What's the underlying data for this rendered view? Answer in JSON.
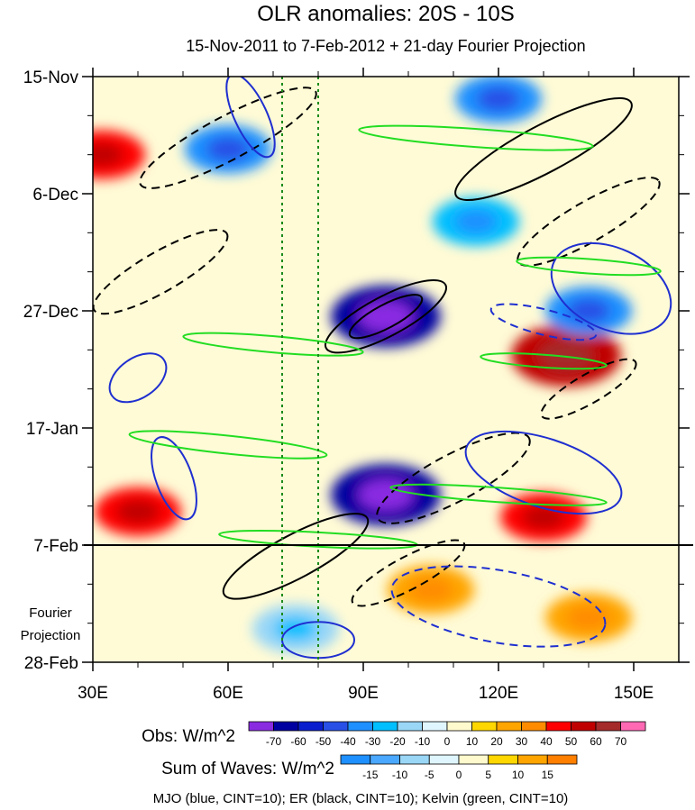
{
  "chart_data": {
    "type": "heatmap",
    "title": "OLR anomalies: 20S - 10S",
    "subtitle": "15-Nov-2011 to 7-Feb-2012 + 21-day Fourier Projection",
    "x_ticks": [
      {
        "value": 30,
        "label": "30E"
      },
      {
        "value": 60,
        "label": "60E"
      },
      {
        "value": 90,
        "label": "90E"
      },
      {
        "value": 120,
        "label": "120E"
      },
      {
        "value": 150,
        "label": "150E"
      }
    ],
    "xlim": [
      30,
      160
    ],
    "y_ticks": [
      {
        "value": "2011-11-15",
        "label": "15-Nov"
      },
      {
        "value": "2011-12-06",
        "label": "6-Dec"
      },
      {
        "value": "2011-12-27",
        "label": "27-Dec"
      },
      {
        "value": "2012-01-17",
        "label": "17-Jan"
      },
      {
        "value": "2012-02-07",
        "label": "7-Feb"
      },
      {
        "value": "2012-02-28",
        "label": "28-Feb"
      }
    ],
    "ylim": [
      "2011-11-15",
      "2012-02-28"
    ],
    "forecast_start": "2012-02-07",
    "forecast_label": "Fourier Projection",
    "reference_lines_x": [
      72,
      80
    ],
    "obs_colorbar": {
      "label": "Obs: W/m^2",
      "levels": [
        "-70",
        "-60",
        "-50",
        "-40",
        "-30",
        "-20",
        "-10",
        "0",
        "10",
        "20",
        "30",
        "40",
        "50",
        "60",
        "70"
      ],
      "colors": [
        "#8a2be2",
        "#0000a0",
        "#0a1ecd",
        "#2850e6",
        "#1e90ff",
        "#00bfff",
        "#9ad7f7",
        "#e0f6ff",
        "#fffacd",
        "#ffd700",
        "#ffa500",
        "#ff8c00",
        "#ff0000",
        "#c00000",
        "#a52a2a",
        "#ff69b4"
      ]
    },
    "waves_colorbar": {
      "label": "Sum of Waves: W/m^2",
      "levels": [
        "-15",
        "-10",
        "-5",
        "0",
        "5",
        "10",
        "15"
      ],
      "colors": [
        "#1e90ff",
        "#4aa8ff",
        "#9ad7f7",
        "#e0f6ff",
        "#fffacd",
        "#ffd700",
        "#ffa500",
        "#ff7f00"
      ]
    },
    "contour_legend": "MJO (blue, CINT=10); ER (black, CINT=10); Kelvin (green, CINT=10)",
    "contour_colors": {
      "MJO": "#1f2fd0",
      "ER": "#000000",
      "Kelvin": "#22dd22"
    },
    "contour_interval": 10,
    "obs_field_sketch": [
      {
        "lon": 95,
        "date": "2012-01-29",
        "value": -65
      },
      {
        "lon": 95,
        "date": "2011-12-28",
        "value": -65
      },
      {
        "lon": 135,
        "date": "2012-01-04",
        "value": 55
      },
      {
        "lon": 130,
        "date": "2012-02-02",
        "value": 45
      },
      {
        "lon": 40,
        "date": "2012-02-01",
        "value": 45
      },
      {
        "lon": 32,
        "date": "2011-11-29",
        "value": 45
      },
      {
        "lon": 60,
        "date": "2011-11-28",
        "value": -40
      },
      {
        "lon": 140,
        "date": "2011-12-27",
        "value": -40
      },
      {
        "lon": 120,
        "date": "2011-11-19",
        "value": -40
      },
      {
        "lon": 115,
        "date": "2011-12-11",
        "value": -30
      },
      {
        "lon": 105,
        "date": "2012-02-15",
        "value": 20
      },
      {
        "lon": 140,
        "date": "2012-02-20",
        "value": 20
      },
      {
        "lon": 75,
        "date": "2012-02-22",
        "value": -15
      }
    ]
  }
}
